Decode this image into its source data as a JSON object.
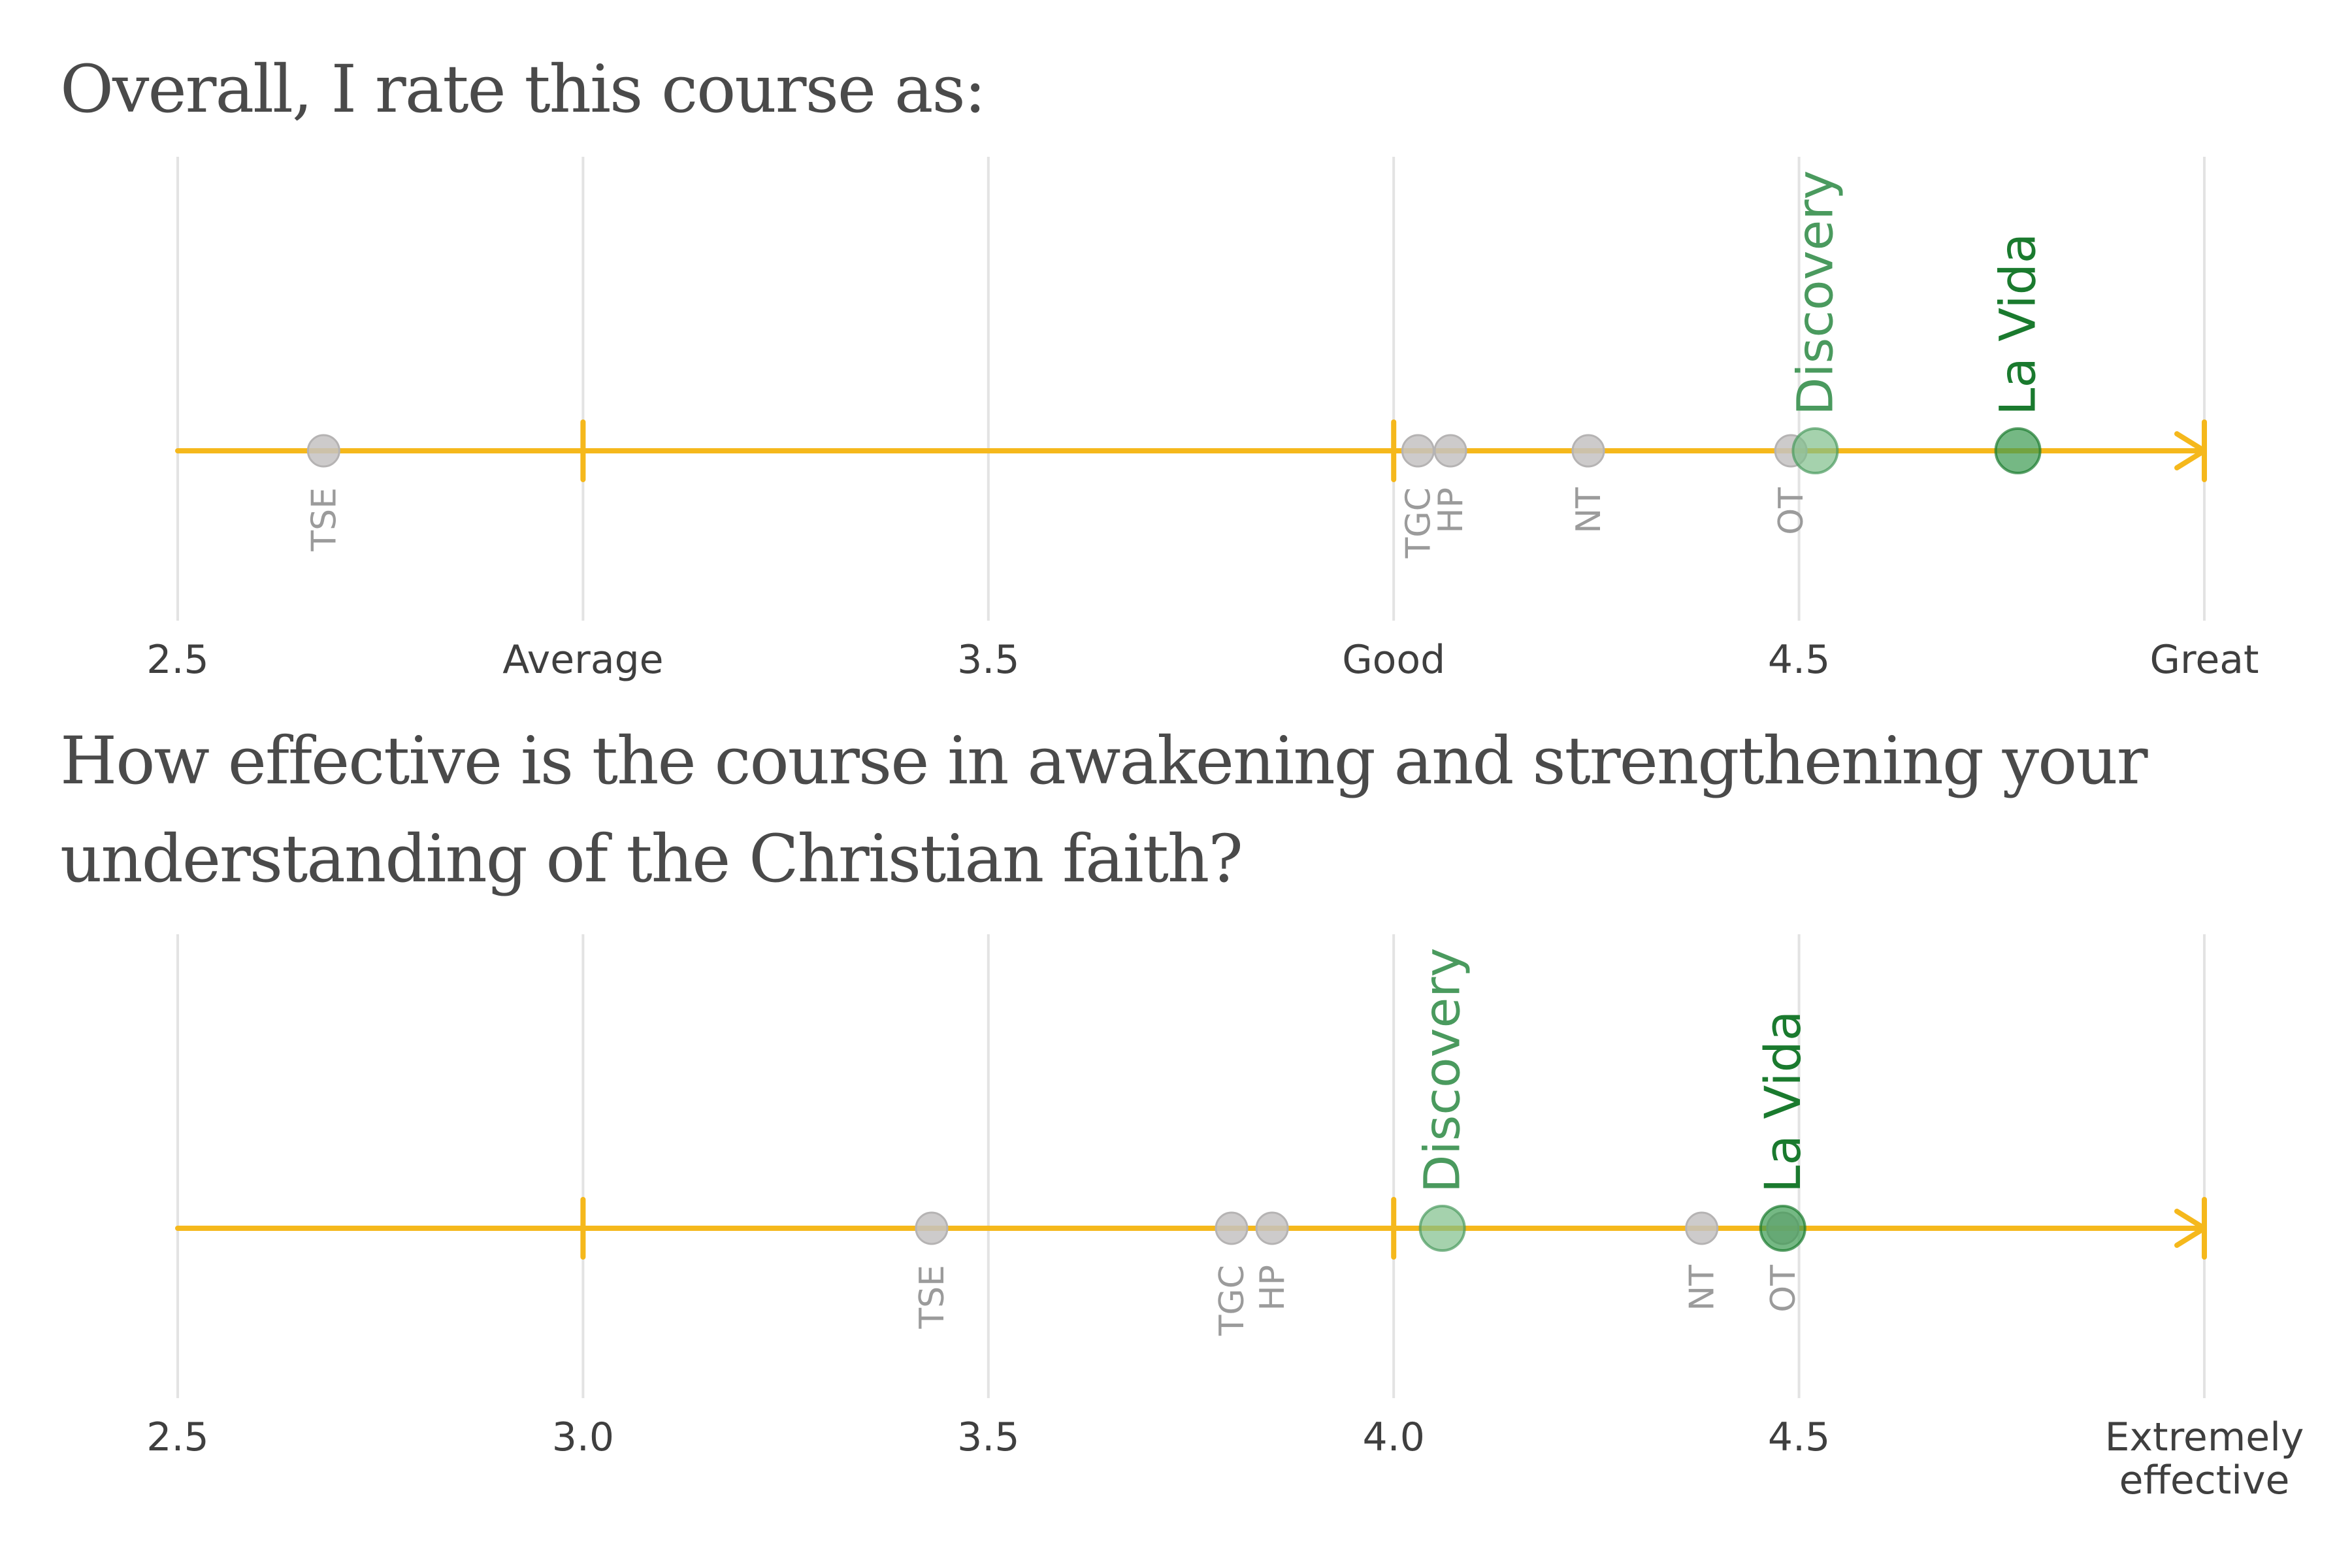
{
  "chart_data": [
    {
      "type": "scatter",
      "title": "Overall, I rate this course as:",
      "xlim": [
        2.5,
        5.0
      ],
      "grid": true,
      "ticks": [
        {
          "value": 2.5,
          "label": "2.5"
        },
        {
          "value": 3.0,
          "label": "Average"
        },
        {
          "value": 3.5,
          "label": "3.5"
        },
        {
          "value": 4.0,
          "label": "Good"
        },
        {
          "value": 4.5,
          "label": "4.5"
        },
        {
          "value": 5.0,
          "label": "Great"
        }
      ],
      "axis_marks": [
        3.0,
        4.0
      ],
      "points": [
        {
          "name": "TSE",
          "x": 2.68,
          "highlight": false
        },
        {
          "name": "TGC",
          "x": 4.03,
          "highlight": false
        },
        {
          "name": "HP",
          "x": 4.07,
          "highlight": false
        },
        {
          "name": "NT",
          "x": 4.24,
          "highlight": false
        },
        {
          "name": "OT",
          "x": 4.49,
          "highlight": false
        },
        {
          "name": "Discovery",
          "x": 4.52,
          "highlight": true,
          "color": "#7fbf8a",
          "labelColor": "#4a9a5e"
        },
        {
          "name": "La Vida",
          "x": 4.77,
          "highlight": true,
          "color": "#3a9a50",
          "labelColor": "#1a7a2e"
        }
      ]
    },
    {
      "type": "scatter",
      "title": "How effective is the course in awakening and strengthening your understanding of the Christian faith?",
      "xlim": [
        2.5,
        5.0
      ],
      "grid": true,
      "ticks": [
        {
          "value": 2.5,
          "label": "2.5"
        },
        {
          "value": 3.0,
          "label": "3.0"
        },
        {
          "value": 3.5,
          "label": "3.5"
        },
        {
          "value": 4.0,
          "label": "4.0"
        },
        {
          "value": 4.5,
          "label": "4.5"
        },
        {
          "value": 5.0,
          "label": "Extremely\neffective"
        }
      ],
      "axis_marks": [
        3.0,
        4.0
      ],
      "points": [
        {
          "name": "TSE",
          "x": 3.43,
          "highlight": false
        },
        {
          "name": "TGC",
          "x": 3.8,
          "highlight": false
        },
        {
          "name": "HP",
          "x": 3.85,
          "highlight": false
        },
        {
          "name": "NT",
          "x": 4.38,
          "highlight": false
        },
        {
          "name": "OT",
          "x": 4.48,
          "highlight": false
        },
        {
          "name": "Discovery",
          "x": 4.06,
          "highlight": true,
          "color": "#7fbf8a",
          "labelColor": "#4a9a5e"
        },
        {
          "name": "La Vida",
          "x": 4.48,
          "highlight": true,
          "color": "#3a9a50",
          "labelColor": "#1a7a2e"
        }
      ]
    }
  ],
  "colors": {
    "axis": "#f5b81c",
    "grid": "#e3e3e3",
    "gray_point": "#c4c2c2",
    "gray_label": "#9b9b9b"
  }
}
